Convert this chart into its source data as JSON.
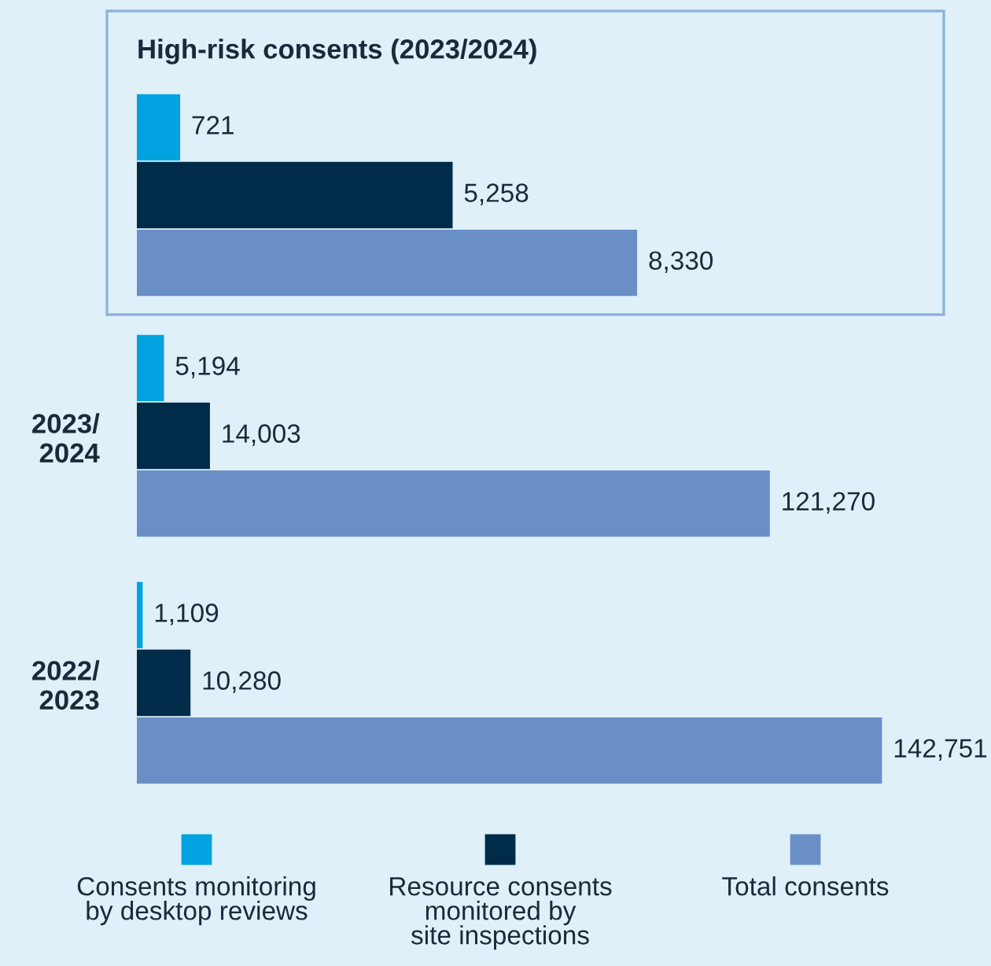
{
  "chart_data": [
    {
      "type": "bar",
      "orientation": "horizontal",
      "title": "High-risk consents (2023/2024)",
      "categories": [
        null
      ],
      "tick_labels": false,
      "series": [
        {
          "color": "#00a3e0",
          "values": [
            721
          ],
          "value_labels": [
            "721"
          ]
        },
        {
          "color": "#002b49",
          "values": [
            5258
          ],
          "value_labels": [
            "5,258"
          ]
        },
        {
          "color": "#6a8fc7",
          "values": [
            8330
          ],
          "value_labels": [
            "8,330"
          ]
        }
      ]
    },
    {
      "type": "bar",
      "orientation": "horizontal",
      "categories": [
        "2023/\n2024",
        "2022/\n2023"
      ],
      "tick_labels": "y",
      "legend": "bottom",
      "series": [
        {
          "name": "Consents monitoring\nby desktop reviews",
          "color": "#00a3e0",
          "values": [
            5194,
            1109
          ],
          "value_labels": [
            "5,194",
            "1,109"
          ]
        },
        {
          "name": "Resource consents\nmonitored by\nsite inspections",
          "color": "#002b49",
          "values": [
            14003,
            10280
          ],
          "value_labels": [
            "14,003",
            "10,280"
          ]
        },
        {
          "name": "Total consents",
          "color": "#6a8fc7",
          "values": [
            121270,
            142751
          ],
          "value_labels": [
            "121,270",
            "142,751"
          ]
        }
      ]
    }
  ]
}
